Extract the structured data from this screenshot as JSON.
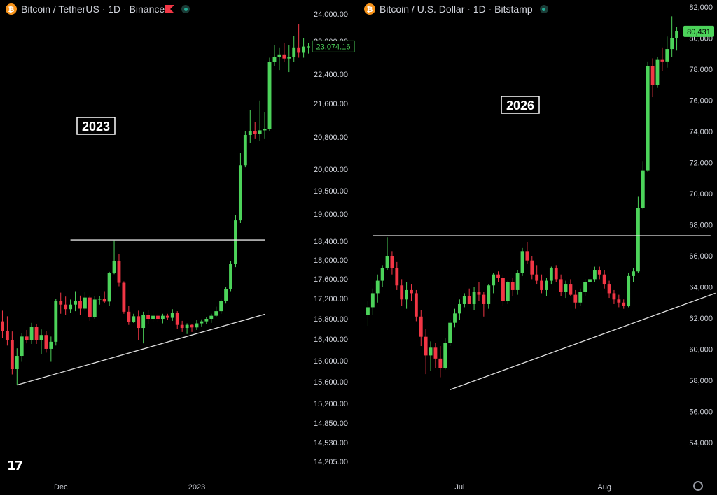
{
  "colors": {
    "up": "#4cd35a",
    "down": "#f23645",
    "line": "#e0e0e0",
    "badge": "#4cd35a"
  },
  "icons": {
    "symbol": "bitcoin-icon",
    "flag": "flag-icon",
    "status": "market-open-icon",
    "logo": "tradingview-logo-icon",
    "settings": "gear-icon"
  },
  "tv_logo": "17",
  "chart_data": [
    {
      "type": "candlestick",
      "title": "Bitcoin / TetherUS · 1D · Binance",
      "annotation": "2023",
      "ylim": [
        14000,
        24300
      ],
      "price_badge": "23,074.16",
      "y_ticks": [
        {
          "v": 24000,
          "label": "24,000.00"
        },
        {
          "v": 23200,
          "label": "23,200.00"
        },
        {
          "v": 22400,
          "label": "22,400.00"
        },
        {
          "v": 21600,
          "label": "21,600.00"
        },
        {
          "v": 20800,
          "label": "20,800.00"
        },
        {
          "v": 20000,
          "label": "20,000.00"
        },
        {
          "v": 19500,
          "label": "19,500.00"
        },
        {
          "v": 19000,
          "label": "19,000.00"
        },
        {
          "v": 18400,
          "label": "18,400.00"
        },
        {
          "v": 18000,
          "label": "18,000.00"
        },
        {
          "v": 17600,
          "label": "17,600.00"
        },
        {
          "v": 17200,
          "label": "17,200.00"
        },
        {
          "v": 16800,
          "label": "16,800.00"
        },
        {
          "v": 16400,
          "label": "16,400.00"
        },
        {
          "v": 16000,
          "label": "16,000.00"
        },
        {
          "v": 15600,
          "label": "15,600.00"
        },
        {
          "v": 15200,
          "label": "15,200.00"
        },
        {
          "v": 14850,
          "label": "14,850.00"
        },
        {
          "v": 14530,
          "label": "14,530.00"
        },
        {
          "v": 14205,
          "label": "14,205.00"
        }
      ],
      "x_labels": [
        {
          "i": 12,
          "label": "Dec"
        },
        {
          "i": 40,
          "label": "2023"
        }
      ],
      "resistance": {
        "i1": 14,
        "i2": 54,
        "price": 18430
      },
      "support": {
        "i1": 3,
        "i2": 54,
        "p1": 15540,
        "p2": 16890
      },
      "candles": [
        [
          16750,
          16960,
          16420,
          16560
        ],
        [
          16560,
          16850,
          16280,
          16380
        ],
        [
          16380,
          16550,
          15740,
          15840
        ],
        [
          15840,
          16230,
          15540,
          16090
        ],
        [
          16090,
          16520,
          15980,
          16450
        ],
        [
          16450,
          16580,
          16320,
          16380
        ],
        [
          16380,
          16720,
          16310,
          16640
        ],
        [
          16640,
          16700,
          16310,
          16380
        ],
        [
          16380,
          16590,
          16120,
          16480
        ],
        [
          16480,
          16560,
          16150,
          16220
        ],
        [
          16220,
          16450,
          15980,
          16350
        ],
        [
          16350,
          17200,
          16280,
          17150
        ],
        [
          17150,
          17320,
          16900,
          17080
        ],
        [
          17080,
          17240,
          16880,
          16990
        ],
        [
          16990,
          17180,
          16920,
          17080
        ],
        [
          17080,
          17350,
          16950,
          17150
        ],
        [
          17150,
          17260,
          16880,
          17000
        ],
        [
          17000,
          17330,
          16960,
          17220
        ],
        [
          17220,
          17260,
          16760,
          16840
        ],
        [
          16840,
          17250,
          16800,
          17180
        ],
        [
          17180,
          17250,
          17080,
          17200
        ],
        [
          17200,
          17350,
          17110,
          17140
        ],
        [
          17140,
          17750,
          17050,
          17720
        ],
        [
          17720,
          18420,
          17700,
          17980
        ],
        [
          17980,
          18120,
          17450,
          17520
        ],
        [
          17520,
          17550,
          16900,
          16940
        ],
        [
          16940,
          17060,
          16680,
          16740
        ],
        [
          16740,
          16900,
          16720,
          16850
        ],
        [
          16850,
          16960,
          16380,
          16620
        ],
        [
          16620,
          16940,
          16320,
          16870
        ],
        [
          16870,
          16980,
          16700,
          16800
        ],
        [
          16800,
          16950,
          16730,
          16860
        ],
        [
          16860,
          16900,
          16740,
          16800
        ],
        [
          16800,
          16900,
          16710,
          16860
        ],
        [
          16860,
          16900,
          16780,
          16820
        ],
        [
          16820,
          16990,
          16760,
          16920
        ],
        [
          16920,
          16950,
          16600,
          16680
        ],
        [
          16680,
          16760,
          16540,
          16620
        ],
        [
          16620,
          16710,
          16500,
          16680
        ],
        [
          16680,
          16700,
          16540,
          16630
        ],
        [
          16630,
          16780,
          16580,
          16710
        ],
        [
          16710,
          16790,
          16650,
          16750
        ],
        [
          16750,
          16830,
          16700,
          16800
        ],
        [
          16800,
          16900,
          16720,
          16860
        ],
        [
          16860,
          17040,
          16830,
          16950
        ],
        [
          16950,
          17180,
          16900,
          17150
        ],
        [
          17150,
          17440,
          17100,
          17400
        ],
        [
          17400,
          17980,
          17350,
          17920
        ],
        [
          17920,
          18980,
          17850,
          18860
        ],
        [
          18860,
          20400,
          18800,
          20100
        ],
        [
          20100,
          20950,
          20050,
          20850
        ],
        [
          20850,
          21450,
          20650,
          20950
        ],
        [
          20950,
          21150,
          20750,
          20880
        ],
        [
          20880,
          21680,
          20700,
          20960
        ],
        [
          20960,
          21400,
          20750,
          20990
        ],
        [
          20990,
          22800,
          20950,
          22700
        ],
        [
          22700,
          23100,
          22600,
          22820
        ],
        [
          22820,
          23050,
          22500,
          22880
        ],
        [
          22880,
          23150,
          22700,
          22780
        ],
        [
          22780,
          23100,
          22450,
          22820
        ],
        [
          22820,
          23350,
          22700,
          23050
        ],
        [
          23050,
          23700,
          22800,
          22920
        ],
        [
          22920,
          23300,
          22800,
          23070
        ],
        [
          23070,
          23160,
          22900,
          23074
        ]
      ]
    },
    {
      "type": "candlestick",
      "title": "Bitcoin / U.S. Dollar · 1D · Bitstamp",
      "annotation": "2026",
      "ylim": [
        52800,
        82500
      ],
      "price_badge": "80,431",
      "y_ticks": [
        {
          "v": 82000,
          "label": "82,000"
        },
        {
          "v": 80000,
          "label": "80,000"
        },
        {
          "v": 78000,
          "label": "78,000"
        },
        {
          "v": 76000,
          "label": "76,000"
        },
        {
          "v": 74000,
          "label": "74,000"
        },
        {
          "v": 72000,
          "label": "72,000"
        },
        {
          "v": 70000,
          "label": "70,000"
        },
        {
          "v": 68000,
          "label": "68,000"
        },
        {
          "v": 66000,
          "label": "66,000"
        },
        {
          "v": 64000,
          "label": "64,000"
        },
        {
          "v": 62000,
          "label": "62,000"
        },
        {
          "v": 60000,
          "label": "60,000"
        },
        {
          "v": 58000,
          "label": "58,000"
        },
        {
          "v": 56000,
          "label": "56,000"
        },
        {
          "v": 54000,
          "label": "54,000"
        }
      ],
      "x_labels": [
        {
          "i": 19,
          "label": "Jul"
        },
        {
          "i": 49,
          "label": "Aug"
        }
      ],
      "resistance": {
        "i1": 1,
        "i2": 71,
        "price": 67300
      },
      "support": {
        "i1": 17,
        "i2": 72,
        "p1": 57400,
        "p2": 63600
      },
      "candles": [
        [
          62200,
          63100,
          61500,
          62700
        ],
        [
          62700,
          63900,
          62200,
          63600
        ],
        [
          63600,
          64800,
          63000,
          64400
        ],
        [
          64400,
          65400,
          64000,
          65200
        ],
        [
          65200,
          67200,
          65100,
          66000
        ],
        [
          66000,
          66300,
          64800,
          65200
        ],
        [
          65200,
          65600,
          63800,
          64100
        ],
        [
          64100,
          64500,
          62800,
          63200
        ],
        [
          63200,
          64300,
          62600,
          63800
        ],
        [
          63800,
          64200,
          63100,
          63600
        ],
        [
          63600,
          63800,
          61800,
          62100
        ],
        [
          62100,
          62500,
          60200,
          60800
        ],
        [
          60800,
          61300,
          58400,
          59600
        ],
        [
          59600,
          60500,
          58600,
          60100
        ],
        [
          60100,
          60400,
          58800,
          59400
        ],
        [
          59400,
          60200,
          58200,
          58800
        ],
        [
          58800,
          60700,
          58700,
          60400
        ],
        [
          60400,
          61900,
          60200,
          61700
        ],
        [
          61700,
          62600,
          61400,
          62300
        ],
        [
          62300,
          63200,
          61900,
          62900
        ],
        [
          62900,
          63600,
          62700,
          63400
        ],
        [
          63400,
          63900,
          62900,
          62900
        ],
        [
          62900,
          64000,
          62500,
          63700
        ],
        [
          63700,
          64300,
          63100,
          63500
        ],
        [
          63500,
          63700,
          62100,
          62900
        ],
        [
          62900,
          64200,
          62600,
          64100
        ],
        [
          64100,
          64900,
          63600,
          64800
        ],
        [
          64800,
          65000,
          64300,
          64600
        ],
        [
          64600,
          64800,
          62800,
          63100
        ],
        [
          63100,
          64400,
          62900,
          64300
        ],
        [
          64300,
          64600,
          63400,
          63800
        ],
        [
          63800,
          65100,
          63500,
          64900
        ],
        [
          64900,
          66500,
          64700,
          66300
        ],
        [
          66300,
          66900,
          65500,
          65700
        ],
        [
          65700,
          66000,
          64500,
          64800
        ],
        [
          64800,
          65400,
          64200,
          64400
        ],
        [
          64400,
          64800,
          63600,
          63800
        ],
        [
          63800,
          64600,
          63400,
          64400
        ],
        [
          64400,
          65300,
          64200,
          65200
        ],
        [
          65200,
          65400,
          64300,
          64500
        ],
        [
          64500,
          64800,
          63400,
          63700
        ],
        [
          63700,
          64400,
          63300,
          64200
        ],
        [
          64200,
          64500,
          63400,
          63500
        ],
        [
          63500,
          63800,
          62600,
          63000
        ],
        [
          63000,
          63900,
          62800,
          63700
        ],
        [
          63700,
          64500,
          63400,
          64300
        ],
        [
          64300,
          64800,
          63900,
          64500
        ],
        [
          64500,
          65300,
          64300,
          65100
        ],
        [
          65100,
          65300,
          64500,
          64800
        ],
        [
          64800,
          65100,
          63900,
          64200
        ],
        [
          64200,
          64400,
          63300,
          63600
        ],
        [
          63600,
          63800,
          62900,
          63200
        ],
        [
          63200,
          63500,
          62700,
          63000
        ],
        [
          63000,
          63200,
          62600,
          62800
        ],
        [
          62800,
          64900,
          62700,
          64700
        ],
        [
          64700,
          65200,
          64300,
          65000
        ],
        [
          65000,
          69800,
          64900,
          69100
        ],
        [
          69100,
          72100,
          69000,
          71500
        ],
        [
          71500,
          78500,
          71400,
          78200
        ],
        [
          78200,
          78700,
          76200,
          77000
        ],
        [
          77000,
          78800,
          76800,
          78600
        ],
        [
          78600,
          79400,
          77900,
          78500
        ],
        [
          78500,
          80100,
          78100,
          79300
        ],
        [
          79300,
          81400,
          78800,
          80000
        ],
        [
          80000,
          80700,
          79200,
          80431
        ]
      ]
    }
  ]
}
